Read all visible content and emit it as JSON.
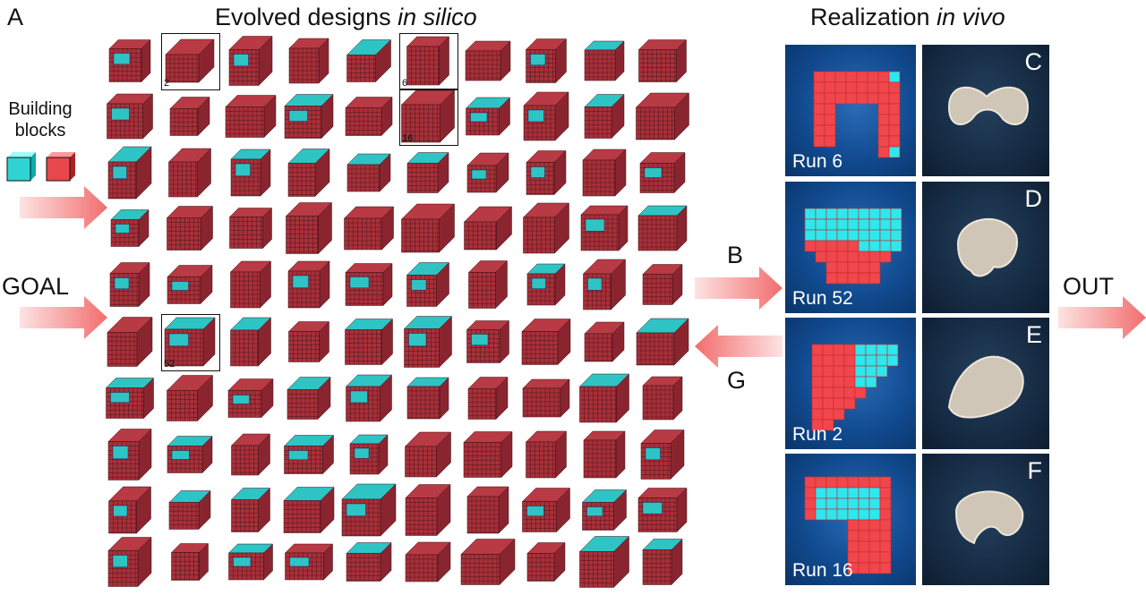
{
  "panel_a": {
    "letter": "A",
    "title_main": "Evolved designs ",
    "title_italic": "in silico"
  },
  "panel_right": {
    "title_main": "Realization ",
    "title_italic": "in vivo"
  },
  "building_blocks": {
    "label_line1": "Building",
    "label_line2": "blocks",
    "colors": [
      "#2fd3d3",
      "#e8474c"
    ]
  },
  "goal_label": "GOAL",
  "out_label": "OUT",
  "b_label": "B",
  "g_label": "G",
  "highlighted_designs": [
    "2",
    "6",
    "16",
    "52"
  ],
  "colors": {
    "voxel_red": "#a8303a",
    "voxel_cyan": "#2ec4c4",
    "arrow": "#f26d6d",
    "panel_bg": "#114a8f"
  },
  "realizations": [
    {
      "run": "Run 6",
      "letter": "C"
    },
    {
      "run": "Run 52",
      "letter": "D"
    },
    {
      "run": "Run 2",
      "letter": "E"
    },
    {
      "run": "Run 16",
      "letter": "F"
    }
  ]
}
